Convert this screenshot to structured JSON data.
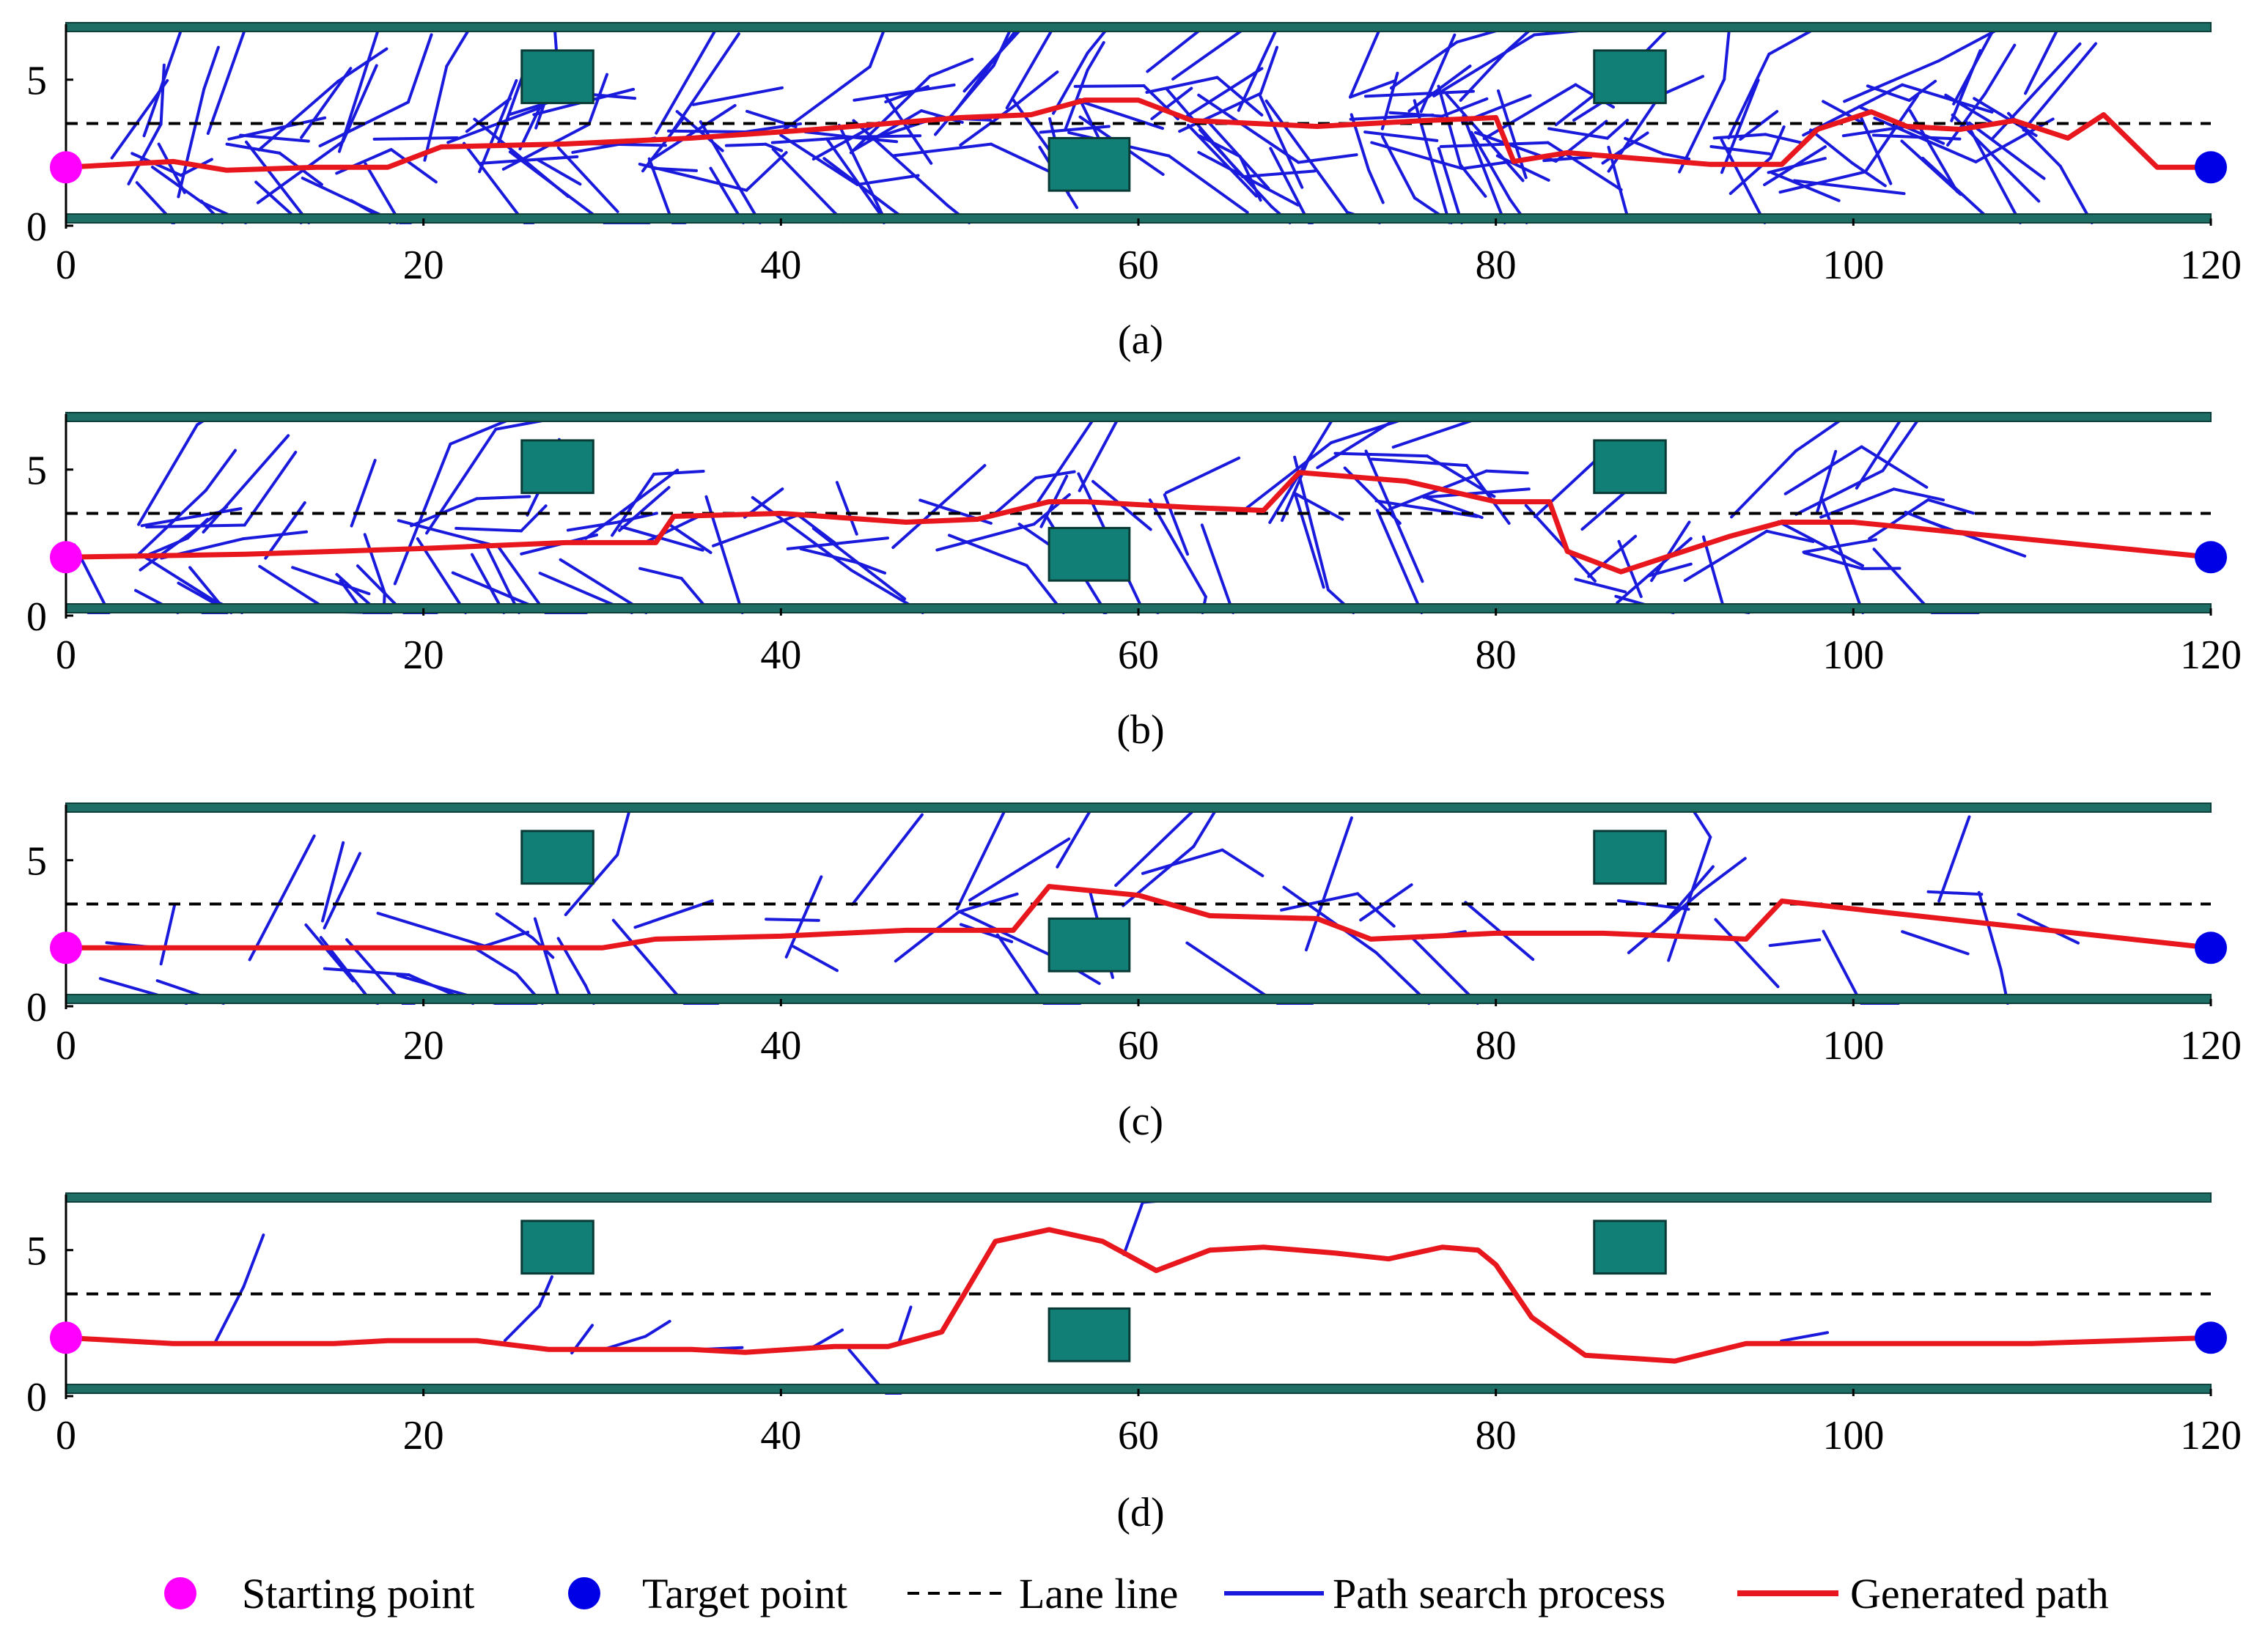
{
  "colors": {
    "start": "#ff00ff",
    "target": "#0000e6",
    "lane": "#000000",
    "search": "#1a1adc",
    "path": "#e8171e",
    "boundary": "#1f6e66",
    "obstacle": "#127f77"
  },
  "legend": {
    "start": "Starting point",
    "target": "Target point",
    "lane": "Lane line",
    "search": "Path search process",
    "generated": "Generated path"
  },
  "chart_data": [
    {
      "type": "line",
      "caption": "(a)",
      "xlim": [
        0,
        120
      ],
      "ylim": [
        0,
        6.9
      ],
      "xticks": [
        "0",
        "20",
        "40",
        "60",
        "80",
        "100",
        "120"
      ],
      "yticks": [
        "0",
        "5"
      ],
      "lane_y": 3.5,
      "boundaries": [
        0.25,
        6.8
      ],
      "obstacles": [
        {
          "x": [
            25.5,
            29.5
          ],
          "y": [
            4.2,
            6.0
          ]
        },
        {
          "x": [
            55,
            59.5
          ],
          "y": [
            1.2,
            3.0
          ]
        },
        {
          "x": [
            85.5,
            89.5
          ],
          "y": [
            4.2,
            6.0
          ]
        }
      ],
      "start": [
        0,
        2.0
      ],
      "target": [
        120,
        2.0
      ],
      "path": {
        "x": [
          0,
          6,
          9,
          14,
          18,
          21,
          28,
          35,
          42,
          50,
          54,
          57,
          60,
          63,
          70,
          76,
          80,
          81,
          84,
          88,
          92,
          96,
          98,
          101,
          103,
          106,
          109,
          112,
          114,
          117,
          120
        ],
        "y": [
          2.0,
          2.2,
          1.9,
          2.0,
          2.0,
          2.7,
          2.8,
          3.0,
          3.3,
          3.7,
          3.8,
          4.3,
          4.3,
          3.6,
          3.4,
          3.6,
          3.7,
          2.2,
          2.5,
          2.3,
          2.1,
          2.1,
          3.3,
          3.9,
          3.4,
          3.3,
          3.6,
          3.0,
          3.8,
          2.0,
          2.0
        ]
      },
      "search_density": 180,
      "search_seed": 11
    },
    {
      "type": "line",
      "caption": "(b)",
      "xlim": [
        0,
        120
      ],
      "ylim": [
        0,
        6.9
      ],
      "xticks": [
        "0",
        "20",
        "40",
        "60",
        "80",
        "100",
        "120"
      ],
      "yticks": [
        "0",
        "5"
      ],
      "lane_y": 3.5,
      "boundaries": [
        0.25,
        6.8
      ],
      "obstacles": [
        {
          "x": [
            25.5,
            29.5
          ],
          "y": [
            4.2,
            6.0
          ]
        },
        {
          "x": [
            55,
            59.5
          ],
          "y": [
            1.2,
            3.0
          ]
        },
        {
          "x": [
            85.5,
            89.5
          ],
          "y": [
            4.2,
            6.0
          ]
        }
      ],
      "start": [
        0,
        2.0
      ],
      "target": [
        120,
        2.0
      ],
      "path": {
        "x": [
          0,
          10,
          20,
          28,
          33,
          34,
          40,
          47,
          51,
          55,
          57,
          63,
          67,
          69,
          75,
          80,
          83,
          84,
          87,
          93,
          96,
          100,
          120
        ],
        "y": [
          2.0,
          2.1,
          2.3,
          2.5,
          2.5,
          3.4,
          3.5,
          3.2,
          3.3,
          3.9,
          3.9,
          3.7,
          3.6,
          4.9,
          4.6,
          3.9,
          3.9,
          2.2,
          1.5,
          2.7,
          3.2,
          3.2,
          2.0
        ]
      },
      "search_density": 110,
      "search_seed": 23
    },
    {
      "type": "line",
      "caption": "(c)",
      "xlim": [
        0,
        120
      ],
      "ylim": [
        0,
        6.9
      ],
      "xticks": [
        "0",
        "20",
        "40",
        "60",
        "80",
        "100",
        "120"
      ],
      "yticks": [
        "0",
        "5"
      ],
      "lane_y": 3.5,
      "boundaries": [
        0.25,
        6.8
      ],
      "obstacles": [
        {
          "x": [
            25.5,
            29.5
          ],
          "y": [
            4.2,
            6.0
          ]
        },
        {
          "x": [
            55,
            59.5
          ],
          "y": [
            1.2,
            3.0
          ]
        },
        {
          "x": [
            85.5,
            89.5
          ],
          "y": [
            4.2,
            6.0
          ]
        }
      ],
      "start": [
        0,
        2.0
      ],
      "target": [
        120,
        2.0
      ],
      "path": {
        "x": [
          0,
          10,
          20,
          30,
          33,
          40,
          47,
          50,
          53,
          55,
          60,
          64,
          70,
          73,
          80,
          86,
          90,
          94,
          96,
          102,
          120
        ],
        "y": [
          2.0,
          2.0,
          2.0,
          2.0,
          2.3,
          2.4,
          2.6,
          2.6,
          2.6,
          4.1,
          3.8,
          3.1,
          3.0,
          2.3,
          2.5,
          2.5,
          2.4,
          2.3,
          3.6,
          3.2,
          2.0
        ]
      },
      "search_density": 55,
      "search_seed": 37
    },
    {
      "type": "line",
      "caption": "(d)",
      "xlim": [
        0,
        120
      ],
      "ylim": [
        0,
        6.9
      ],
      "xticks": [
        "0",
        "20",
        "40",
        "60",
        "80",
        "100",
        "120"
      ],
      "yticks": [
        "0",
        "5"
      ],
      "lane_y": 3.5,
      "boundaries": [
        0.25,
        6.8
      ],
      "obstacles": [
        {
          "x": [
            25.5,
            29.5
          ],
          "y": [
            4.2,
            6.0
          ]
        },
        {
          "x": [
            55,
            59.5
          ],
          "y": [
            1.2,
            3.0
          ]
        },
        {
          "x": [
            85.5,
            89.5
          ],
          "y": [
            4.2,
            6.0
          ]
        }
      ],
      "start": [
        0,
        2.0
      ],
      "target": [
        120,
        2.0
      ],
      "path": {
        "x": [
          0,
          3,
          6,
          15,
          18,
          23,
          27,
          35,
          38,
          43,
          46,
          49,
          52,
          55,
          58,
          61,
          64,
          67,
          71,
          74,
          77,
          79,
          80,
          82,
          85,
          90,
          94,
          100,
          110,
          120
        ],
        "y": [
          2.0,
          1.9,
          1.8,
          1.8,
          1.9,
          1.9,
          1.6,
          1.6,
          1.5,
          1.7,
          1.7,
          2.2,
          5.3,
          5.7,
          5.3,
          4.3,
          5.0,
          5.1,
          4.9,
          4.7,
          5.1,
          5.0,
          4.5,
          2.7,
          1.4,
          1.2,
          1.8,
          1.8,
          1.8,
          2.0
        ]
      },
      "search_density": 10,
      "search_seed": 51
    }
  ]
}
